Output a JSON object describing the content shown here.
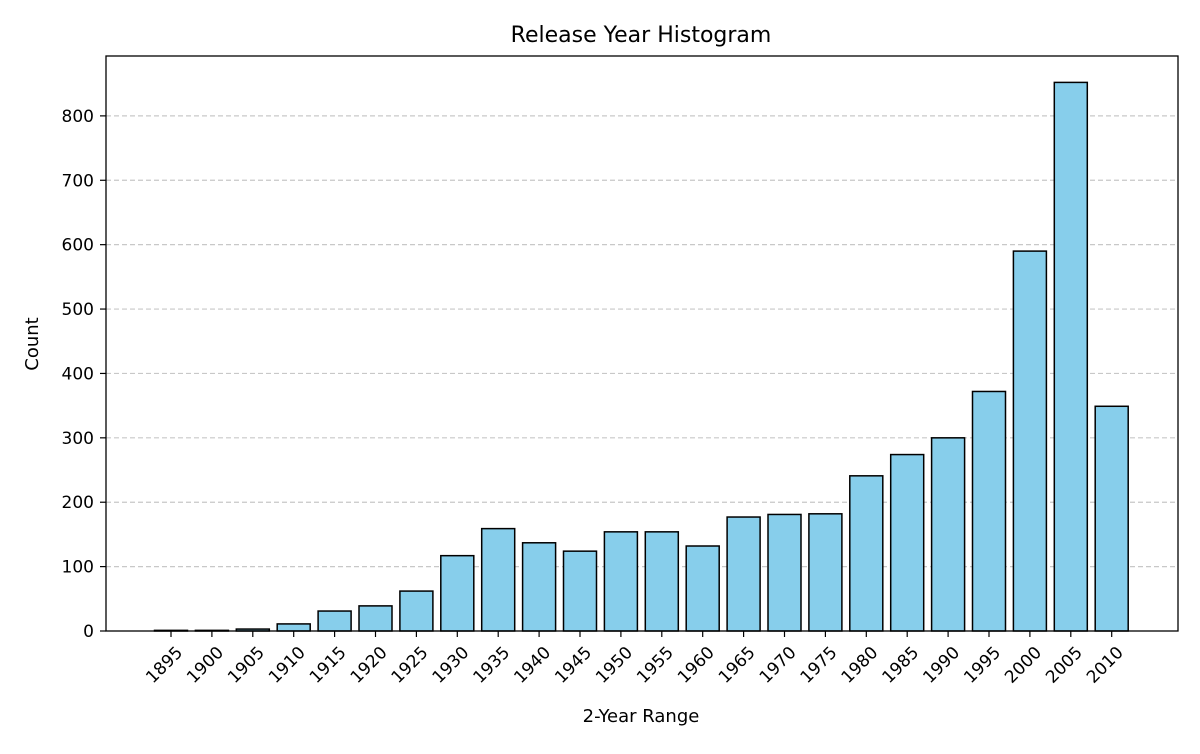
{
  "chart_data": {
    "type": "bar",
    "title": "Release Year Histogram",
    "xlabel": "2-Year Range",
    "ylabel": "Count",
    "categories": [
      "1895",
      "1900",
      "1905",
      "1910",
      "1915",
      "1920",
      "1925",
      "1930",
      "1935",
      "1940",
      "1945",
      "1950",
      "1955",
      "1960",
      "1965",
      "1970",
      "1975",
      "1980",
      "1985",
      "1990",
      "1995",
      "2000",
      "2005",
      "2010"
    ],
    "values": [
      1,
      1,
      3,
      11,
      31,
      39,
      62,
      117,
      159,
      137,
      124,
      154,
      154,
      132,
      177,
      181,
      182,
      241,
      274,
      300,
      372,
      590,
      852,
      349
    ],
    "ylim": [
      0,
      893
    ],
    "yticks": [
      0,
      100,
      200,
      300,
      400,
      500,
      600,
      700,
      800
    ],
    "grid": "y-dashed",
    "colors": {
      "bar_fill": "#87ceeb",
      "bar_edge": "#000000",
      "grid": "#c8c8c8"
    }
  }
}
